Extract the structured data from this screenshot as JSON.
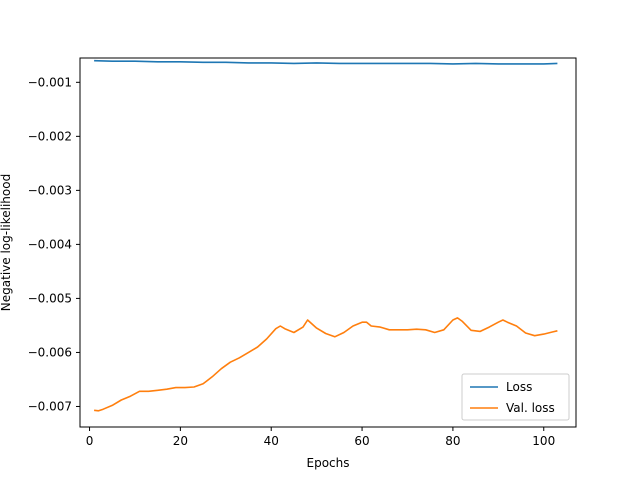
{
  "chart_data": {
    "type": "line",
    "title": "",
    "xlabel": "Epochs",
    "ylabel": "Negative log-likelihood",
    "xlim": [
      -2.1,
      107.1
    ],
    "ylim": [
      -0.00738,
      -0.00055
    ],
    "xticks": [
      0,
      20,
      40,
      60,
      80,
      100
    ],
    "yticks": [
      -0.007,
      -0.006,
      -0.005,
      -0.004,
      -0.003,
      -0.002,
      -0.001
    ],
    "ytick_labels": [
      "−0.007",
      "−0.006",
      "−0.005",
      "−0.004",
      "−0.003",
      "−0.002",
      "−0.001"
    ],
    "grid": false,
    "legend_position": "lower right",
    "series": [
      {
        "name": "Loss",
        "color": "#1f77b4",
        "x": [
          1,
          5,
          10,
          15,
          20,
          25,
          30,
          35,
          40,
          45,
          50,
          55,
          60,
          65,
          70,
          75,
          80,
          85,
          90,
          95,
          100,
          103
        ],
        "y": [
          -0.0006,
          -0.00061,
          -0.00061,
          -0.00062,
          -0.00062,
          -0.00063,
          -0.00063,
          -0.00064,
          -0.00064,
          -0.00065,
          -0.00064,
          -0.00065,
          -0.00065,
          -0.00065,
          -0.00065,
          -0.00065,
          -0.00066,
          -0.00065,
          -0.00066,
          -0.00066,
          -0.00066,
          -0.00065
        ]
      },
      {
        "name": "Val. loss",
        "color": "#ff7f0e",
        "x": [
          1,
          2,
          3,
          5,
          7,
          9,
          11,
          13,
          15,
          17,
          19,
          21,
          23,
          25,
          27,
          29,
          31,
          33,
          35,
          37,
          39,
          41,
          42,
          43,
          45,
          47,
          48,
          50,
          52,
          54,
          56,
          58,
          60,
          61,
          62,
          64,
          66,
          68,
          70,
          72,
          74,
          76,
          78,
          80,
          81,
          82,
          84,
          86,
          88,
          90,
          91,
          92,
          94,
          96,
          98,
          100,
          102,
          103
        ],
        "y": [
          -0.00707,
          -0.00708,
          -0.00705,
          -0.00698,
          -0.00688,
          -0.00681,
          -0.00672,
          -0.00672,
          -0.0067,
          -0.00668,
          -0.00665,
          -0.00665,
          -0.00664,
          -0.00658,
          -0.00645,
          -0.0063,
          -0.00618,
          -0.0061,
          -0.006,
          -0.0059,
          -0.00575,
          -0.00556,
          -0.00551,
          -0.00556,
          -0.00563,
          -0.00553,
          -0.0054,
          -0.00555,
          -0.00565,
          -0.00571,
          -0.00563,
          -0.00551,
          -0.00544,
          -0.00544,
          -0.00551,
          -0.00553,
          -0.00558,
          -0.00558,
          -0.00558,
          -0.00557,
          -0.00558,
          -0.00563,
          -0.00558,
          -0.0054,
          -0.00536,
          -0.00542,
          -0.00559,
          -0.00561,
          -0.00553,
          -0.00544,
          -0.0054,
          -0.00544,
          -0.00551,
          -0.00564,
          -0.00569,
          -0.00566,
          -0.00562,
          -0.0056
        ]
      }
    ]
  }
}
